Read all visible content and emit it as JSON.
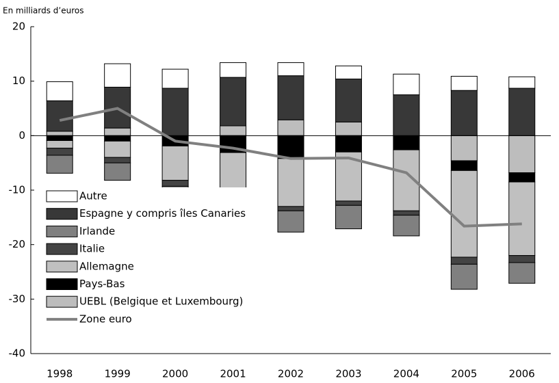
{
  "chart_data": {
    "type": "bar",
    "stacked": true,
    "ylabel": "En milliards d’euros",
    "categories": [
      "1998",
      "1999",
      "2000",
      "2001",
      "2002",
      "2003",
      "2004",
      "2005",
      "2006"
    ],
    "ylim": [
      -40,
      20
    ],
    "yticks": [
      20,
      10,
      0,
      -10,
      -20,
      -30,
      -40
    ],
    "grid": false,
    "legend": "lower left",
    "series": [
      {
        "name": "Autre",
        "color": "#ffffff",
        "values": [
          3.5,
          4.3,
          3.5,
          2.7,
          2.4,
          2.4,
          3.8,
          2.6,
          2.1
        ]
      },
      {
        "name": "Espagne y compris îles Canaries",
        "color": "#383838",
        "values": [
          5.6,
          7.5,
          8.7,
          8.9,
          8.1,
          7.9,
          7.5,
          8.3,
          8.7
        ]
      },
      {
        "name": "Irlande",
        "color": "#808080",
        "values": [
          -3.3,
          -3.2,
          -3.9,
          -3.3,
          -3.9,
          -4.3,
          -3.8,
          -4.6,
          -3.8
        ]
      },
      {
        "name": "Italie",
        "color": "#444444",
        "values": [
          -1.3,
          -1.0,
          -1.1,
          -1.5,
          -0.8,
          -0.8,
          -0.8,
          -1.3,
          -1.3
        ]
      },
      {
        "name": "Allemagne",
        "color": "#c0c0c0",
        "values": [
          -1.4,
          -3.0,
          -6.3,
          -8.2,
          -8.8,
          -9.0,
          -11.2,
          -15.9,
          -13.5
        ]
      },
      {
        "name": "Pays-Bas",
        "color": "#000000",
        "values": [
          -0.9,
          -1.0,
          -1.9,
          -3.1,
          -4.2,
          -3.0,
          -2.6,
          -1.8,
          -1.7
        ]
      },
      {
        "name": "UEBL (Belgique et Luxembourg)",
        "color": "#bdbdbd",
        "values": [
          0.8,
          1.4,
          0,
          1.8,
          2.9,
          2.5,
          0,
          -4.6,
          -6.8
        ]
      },
      {
        "name": "Zone euro",
        "type": "line",
        "color": "#808080",
        "values": [
          2.8,
          5.0,
          -1.0,
          -2.3,
          -4.2,
          -4.1,
          -6.8,
          -16.6,
          -16.2
        ]
      }
    ]
  }
}
